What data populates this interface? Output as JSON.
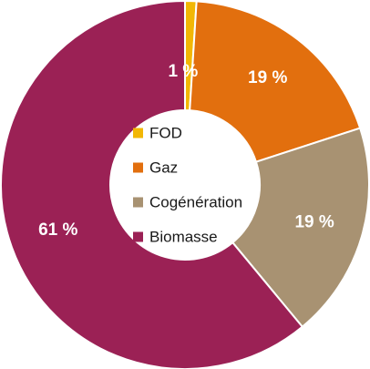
{
  "chart_data": {
    "type": "pie",
    "donut": true,
    "categories": [
      "FOD",
      "Gaz",
      "Cogénération",
      "Biomasse"
    ],
    "values": [
      1,
      19,
      19,
      61
    ],
    "labels": [
      "1 %",
      "19 %",
      "19 %",
      "61 %"
    ],
    "colors": [
      "#f2b705",
      "#e26f0e",
      "#a89272",
      "#9b2155"
    ],
    "start_angle_deg": 0,
    "direction": "clockwise",
    "legend_position": "center"
  }
}
